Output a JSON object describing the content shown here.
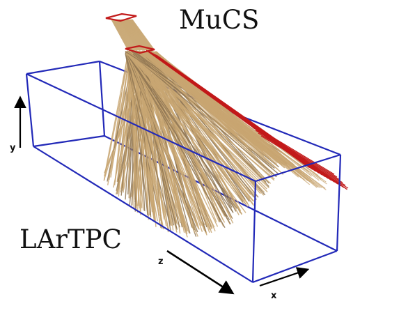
{
  "labels": {
    "top_detector": "MuCS",
    "main_detector": "LArTPC"
  },
  "axes": {
    "x": "x",
    "y": "y",
    "z": "z"
  },
  "colors": {
    "box_edge": "#2229b8",
    "tracks": "#c8a672",
    "tracks_dark": "#8f7652",
    "muon_tracks": "#c21a1a",
    "axis_arrow": "#000000"
  }
}
